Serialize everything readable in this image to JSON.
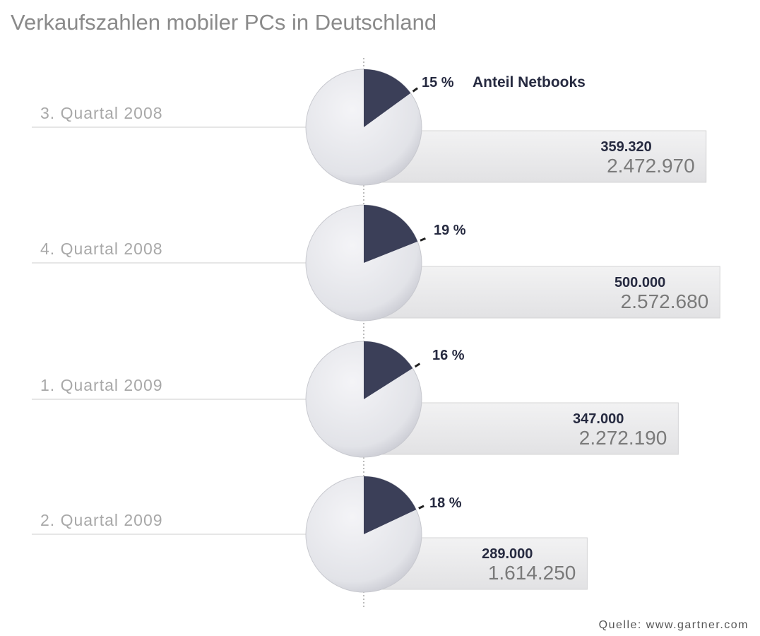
{
  "chart_data": {
    "type": "pie+bar",
    "title": "Verkaufszahlen mobiler PCs in Deutschland",
    "legend_label": "Anteil Netbooks",
    "source": "Quelle: www.gartner.com",
    "categories": [
      "3. Quartal 2008",
      "4. Quartal 2008",
      "1. Quartal 2009",
      "2. Quartal 2009"
    ],
    "series": [
      {
        "name": "Anteil Netbooks",
        "unit": "%",
        "values": [
          15,
          19,
          16,
          18
        ],
        "labels": [
          "15 %",
          "19 %",
          "16 %",
          "18 %"
        ]
      },
      {
        "values": [
          359320,
          500000,
          347000,
          289000
        ],
        "labels": [
          "359.320",
          "500.000",
          "347.000",
          "289.000"
        ]
      },
      {
        "values": [
          2472970,
          2572680,
          2272190,
          1614250
        ],
        "labels": [
          "2.472.970",
          "2.572.680",
          "2.272.190",
          "1.614.250"
        ]
      }
    ],
    "colors": {
      "slice": "#3b3f58",
      "pie": "#e4e5ea",
      "bar": "#e8e8ea",
      "category_text": "#a8a8a8",
      "value_text": "#262a40",
      "total_text": "#7a7a7a"
    }
  }
}
